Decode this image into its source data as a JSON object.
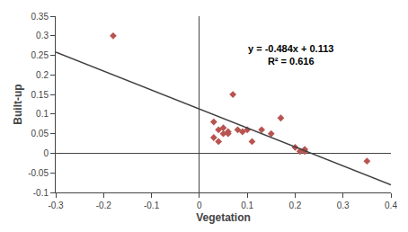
{
  "chart_data": {
    "type": "scatter",
    "xlabel": "Vegetation",
    "ylabel": "Built-up",
    "series": [
      {
        "type": "scatter",
        "marker": "diamond",
        "color": "#b85450",
        "x": [
          -0.18,
          0.03,
          0.03,
          0.04,
          0.04,
          0.05,
          0.05,
          0.06,
          0.06,
          0.07,
          0.08,
          0.09,
          0.1,
          0.11,
          0.13,
          0.15,
          0.17,
          0.2,
          0.21,
          0.22,
          0.22,
          0.35
        ],
        "values": [
          0.3,
          0.08,
          0.04,
          0.06,
          0.03,
          0.065,
          0.05,
          0.055,
          0.05,
          0.15,
          0.06,
          0.055,
          0.06,
          0.03,
          0.06,
          0.05,
          0.09,
          0.015,
          0.005,
          0.005,
          0.01,
          -0.02
        ]
      },
      {
        "type": "line",
        "line_style": "solid",
        "color": "#404040",
        "x": [
          -0.3,
          0.4
        ],
        "values": [
          0.2582,
          -0.0806
        ]
      }
    ],
    "annotations": [
      {
        "text": "y = -0.484x + 0.113\nR² = 0.616",
        "x": 0.19,
        "y": 0.285
      }
    ],
    "xlim": [
      -0.3,
      0.4
    ],
    "ylim": [
      -0.1,
      0.35
    ],
    "xticks": [
      -0.3,
      -0.2,
      -0.1,
      0,
      0.1,
      0.2,
      0.3,
      0.4
    ],
    "yticks": [
      -0.1,
      -0.05,
      0,
      0.05,
      0.1,
      0.15,
      0.2,
      0.25,
      0.3,
      0.35
    ],
    "grid": false
  }
}
